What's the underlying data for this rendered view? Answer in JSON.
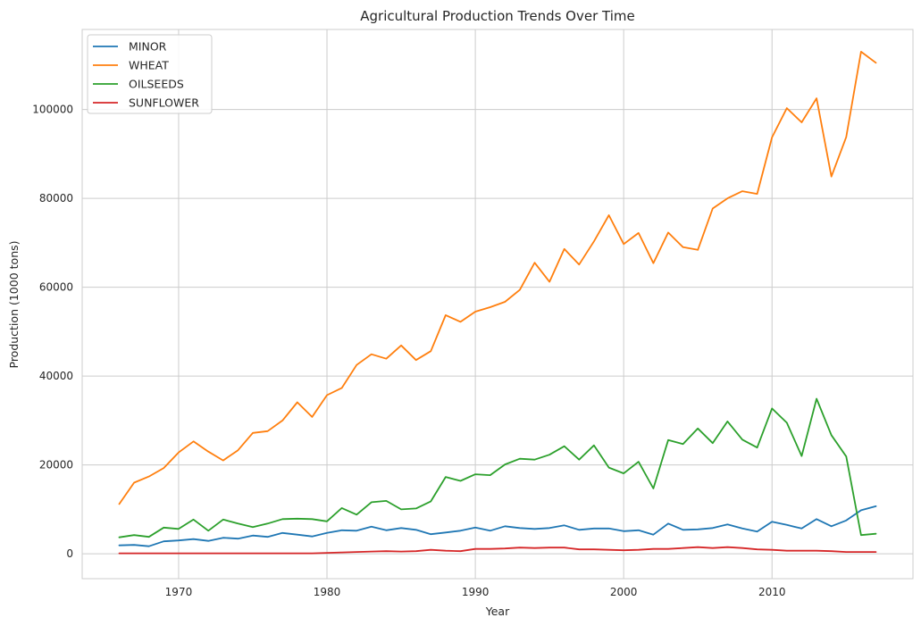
{
  "chart_data": {
    "type": "line",
    "title": "Agricultural Production Trends Over Time",
    "xlabel": "Year",
    "ylabel": "Production (1000 tons)",
    "xlim": [
      1963.5,
      2019.5
    ],
    "ylim": [
      -5600,
      118000
    ],
    "xticks": [
      1970,
      1980,
      1990,
      2000,
      2010
    ],
    "yticks": [
      0,
      20000,
      40000,
      60000,
      80000,
      100000
    ],
    "grid": true,
    "legend_position": "top-left",
    "x": [
      1966,
      1967,
      1968,
      1969,
      1970,
      1971,
      1972,
      1973,
      1974,
      1975,
      1976,
      1977,
      1978,
      1979,
      1980,
      1981,
      1982,
      1983,
      1984,
      1985,
      1986,
      1987,
      1988,
      1989,
      1990,
      1991,
      1992,
      1993,
      1994,
      1995,
      1996,
      1997,
      1998,
      1999,
      2000,
      2001,
      2002,
      2003,
      2004,
      2005,
      2006,
      2007,
      2008,
      2009,
      2010,
      2011,
      2012,
      2013,
      2014,
      2015,
      2016,
      2017
    ],
    "series": [
      {
        "name": "MINOR",
        "color": "#1f77b4",
        "values": [
          1900,
          2000,
          1700,
          2800,
          3000,
          3300,
          2900,
          3600,
          3400,
          4100,
          3800,
          4700,
          4300,
          3900,
          4700,
          5300,
          5200,
          6100,
          5300,
          5800,
          5400,
          4400,
          4800,
          5200,
          5900,
          5200,
          6200,
          5800,
          5600,
          5800,
          6400,
          5400,
          5700,
          5700,
          5100,
          5300,
          4300,
          6800,
          5400,
          5500,
          5800,
          6600,
          5700,
          5000,
          7200,
          6500,
          5700,
          7800,
          6200,
          7500,
          9800,
          10700
        ]
      },
      {
        "name": "WHEAT",
        "color": "#ff7f0e",
        "values": [
          11200,
          16000,
          17400,
          19300,
          22800,
          25300,
          23000,
          21000,
          23300,
          27200,
          27600,
          30000,
          34100,
          30800,
          35700,
          37300,
          42500,
          44900,
          43900,
          46900,
          43600,
          45600,
          53700,
          52200,
          54500,
          55500,
          56700,
          59400,
          65500,
          61200,
          68600,
          65100,
          70300,
          76200,
          69700,
          72200,
          65400,
          72300,
          69000,
          68400,
          77700,
          80000,
          81600,
          81000,
          93700,
          100300,
          97100,
          102500,
          84900,
          93800,
          113000,
          110500
        ]
      },
      {
        "name": "OILSEEDS",
        "color": "#2ca02c",
        "values": [
          3700,
          4200,
          3800,
          5900,
          5600,
          7700,
          5200,
          7700,
          6800,
          6000,
          6800,
          7800,
          7900,
          7800,
          7300,
          10300,
          8800,
          11600,
          11900,
          10000,
          10200,
          11800,
          17300,
          16400,
          17900,
          17700,
          20100,
          21400,
          21200,
          22300,
          24200,
          21200,
          24400,
          19400,
          18100,
          20700,
          14700,
          25600,
          24700,
          28200,
          24900,
          29800,
          25700,
          23900,
          32700,
          29500,
          22000,
          34900,
          26700,
          21900,
          4200,
          4500
        ]
      },
      {
        "name": "SUNFLOWER",
        "color": "#d62728",
        "values": [
          100,
          100,
          100,
          100,
          100,
          100,
          100,
          100,
          100,
          100,
          100,
          100,
          100,
          100,
          200,
          300,
          400,
          500,
          600,
          500,
          600,
          900,
          700,
          600,
          1100,
          1100,
          1200,
          1400,
          1300,
          1400,
          1400,
          1000,
          1000,
          900,
          800,
          900,
          1100,
          1100,
          1300,
          1500,
          1300,
          1500,
          1300,
          1000,
          900,
          700,
          700,
          700,
          600,
          400,
          400,
          400
        ]
      }
    ]
  }
}
